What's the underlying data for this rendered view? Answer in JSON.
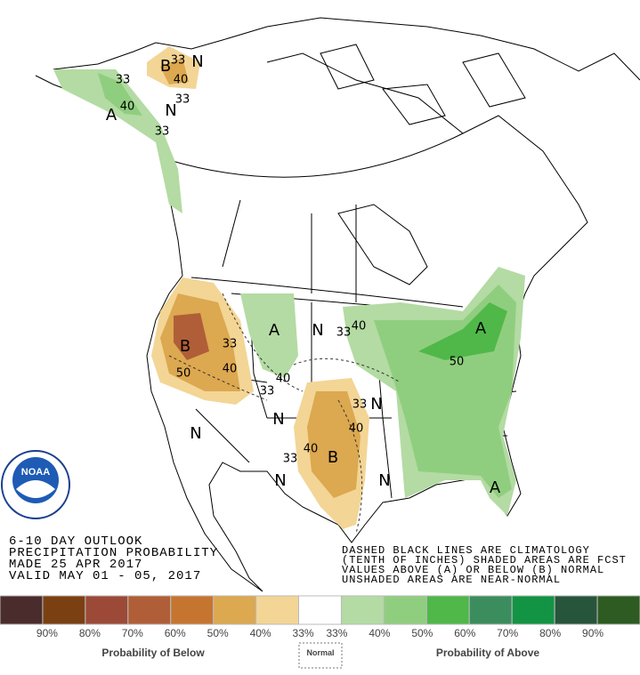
{
  "map": {
    "labels": [
      "B",
      "33",
      "N",
      "40",
      "33",
      "N",
      "33",
      "40",
      "A",
      "33",
      "B",
      "33",
      "50",
      "40",
      "33",
      "40",
      "A",
      "N",
      "33",
      "40",
      "A",
      "50",
      "N",
      "N",
      "33",
      "N",
      "40",
      "40",
      "B",
      "33",
      "N",
      "N",
      "A"
    ]
  },
  "logo": {
    "text": "NOAA"
  },
  "title_block": {
    "lines": [
      "6-10 DAY OUTLOOK",
      "PRECIPITATION PROBABILITY",
      "MADE  25 APR 2017",
      "VALID  MAY 01 - 05, 2017"
    ]
  },
  "notes": {
    "lines": [
      "DASHED BLACK LINES ARE CLIMATOLOGY",
      "(TENTH OF INCHES) SHADED AREAS ARE FCST",
      "VALUES ABOVE (A) OR BELOW (B) NORMAL",
      "UNSHADED AREAS ARE NEAR-NORMAL"
    ]
  },
  "legend": {
    "colors": [
      "#4b2c2c",
      "#7b4012",
      "#9c4a37",
      "#b05e38",
      "#c67530",
      "#dca850",
      "#f3d595",
      "#ffffff",
      "#b3dba3",
      "#90ce7f",
      "#4fb849",
      "#3b8d5d",
      "#139444",
      "#27553b",
      "#2d5b21"
    ],
    "labels": [
      "90%",
      "80%",
      "70%",
      "60%",
      "50%",
      "40%",
      "33%",
      "33%",
      "40%",
      "50%",
      "60%",
      "70%",
      "80%",
      "90%"
    ],
    "below": "Probability of Below",
    "normal": "Normal",
    "above": "Probability of Above"
  }
}
